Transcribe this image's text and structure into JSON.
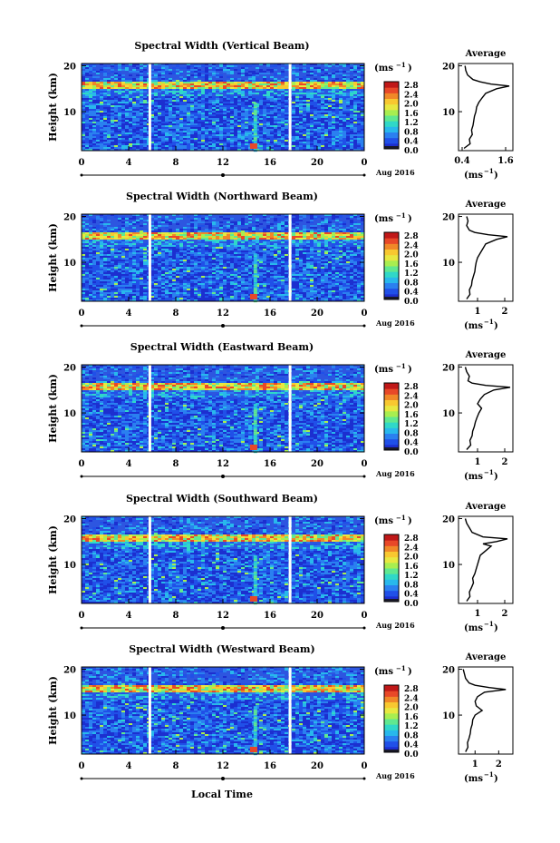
{
  "figure": {
    "date_label": "Aug 2016",
    "xlabel": "Local Time",
    "ylabel": "Height (km)",
    "colorbar_unit": "(ms",
    "colorbar_unit_exp": "−1",
    "avg_title": "Average",
    "avg_xlabel": "(ms",
    "avg_xlabel_exp": "−1",
    "colors": {
      "background_fill": "#2d56e0",
      "scale": [
        "#1a1a2a",
        "#1c2fd0",
        "#2050e8",
        "#2a80f0",
        "#28b8ec",
        "#30d8c8",
        "#60e890",
        "#a8ee50",
        "#e8e840",
        "#f8c830",
        "#f08828",
        "#e84828",
        "#c01818"
      ]
    }
  },
  "chart_data": [
    {
      "type": "heatmap",
      "title": "Spectral Width (Vertical Beam)",
      "xlabel": "Local Time",
      "ylabel": "Height (km)",
      "x_ticks": [
        "0",
        "4",
        "8",
        "12",
        "16",
        "20",
        "0"
      ],
      "y_ticks": [
        "20",
        "10"
      ],
      "xlim": [
        0,
        24
      ],
      "ylim": [
        1.5,
        20.5
      ],
      "colorbar": {
        "unit": "(ms−1)",
        "ticks": [
          "2.8",
          "2.4",
          "2.0",
          "1.6",
          "1.2",
          "0.8",
          "0.4",
          "0.0"
        ],
        "range": [
          0,
          2.8
        ]
      },
      "data_gaps_hours": [
        5.8,
        17.7
      ],
      "average_profile": {
        "title": "Average",
        "xlabel": "(ms−1)",
        "x_ticks": [
          "0.4",
          "1.6"
        ],
        "xlim": [
          0.3,
          1.8
        ],
        "y_ticks": [
          "20",
          "10"
        ],
        "height_km": [
          2,
          3,
          4,
          5,
          6,
          7,
          8,
          9,
          10,
          11,
          12,
          13,
          14,
          15,
          15.6,
          16,
          16.5,
          17,
          18,
          19,
          20
        ],
        "width_ms": [
          0.45,
          0.62,
          0.6,
          0.68,
          0.66,
          0.7,
          0.72,
          0.74,
          0.78,
          0.8,
          0.86,
          0.95,
          1.05,
          1.35,
          1.7,
          1.2,
          0.9,
          0.7,
          0.55,
          0.5,
          0.48
        ]
      }
    },
    {
      "type": "heatmap",
      "title": "Spectral Width (Northward Beam)",
      "xlabel": "Local Time",
      "ylabel": "Height (km)",
      "x_ticks": [
        "0",
        "4",
        "8",
        "12",
        "16",
        "20",
        "0"
      ],
      "y_ticks": [
        "20",
        "10"
      ],
      "xlim": [
        0,
        24
      ],
      "ylim": [
        1.5,
        20.5
      ],
      "colorbar": {
        "unit": "(ms−1)",
        "ticks": [
          "2.8",
          "2.4",
          "2.0",
          "1.6",
          "1.2",
          "0.8",
          "0.4",
          "0.0"
        ],
        "range": [
          0,
          2.8
        ]
      },
      "data_gaps_hours": [
        5.8,
        17.7
      ],
      "average_profile": {
        "title": "Average",
        "xlabel": "(ms−1)",
        "x_ticks": [
          "1",
          "2"
        ],
        "xlim": [
          0.3,
          2.3
        ],
        "y_ticks": [
          "20",
          "10"
        ],
        "height_km": [
          2,
          3,
          4,
          5,
          6,
          7,
          8,
          9,
          10,
          11,
          12,
          13,
          14,
          15,
          15.6,
          16,
          16.5,
          17,
          18,
          19,
          20
        ],
        "width_ms": [
          0.6,
          0.72,
          0.7,
          0.78,
          0.8,
          0.85,
          0.9,
          0.92,
          0.95,
          1.0,
          1.1,
          1.2,
          1.3,
          1.7,
          2.1,
          1.4,
          0.9,
          0.7,
          0.6,
          0.65,
          0.6
        ]
      }
    },
    {
      "type": "heatmap",
      "title": "Spectral Width (Eastward Beam)",
      "xlabel": "Local Time",
      "ylabel": "Height (km)",
      "x_ticks": [
        "0",
        "4",
        "8",
        "12",
        "16",
        "20",
        "0"
      ],
      "y_ticks": [
        "20",
        "10"
      ],
      "xlim": [
        0,
        24
      ],
      "ylim": [
        1.5,
        20.5
      ],
      "colorbar": {
        "unit": "(ms−1)",
        "ticks": [
          "2.8",
          "2.4",
          "2.0",
          "1.6",
          "1.2",
          "0.8",
          "0.4",
          "0.0"
        ],
        "range": [
          0,
          2.8
        ]
      },
      "data_gaps_hours": [
        5.8,
        17.7
      ],
      "average_profile": {
        "title": "Average",
        "xlabel": "(ms−1)",
        "x_ticks": [
          "1",
          "2"
        ],
        "xlim": [
          0.3,
          2.3
        ],
        "y_ticks": [
          "20",
          "10"
        ],
        "height_km": [
          2,
          3,
          4,
          5,
          6,
          7,
          8,
          9,
          10,
          11,
          12,
          13,
          14,
          15,
          15.6,
          16,
          16.5,
          17,
          18,
          19,
          20
        ],
        "width_ms": [
          0.6,
          0.75,
          0.72,
          0.8,
          0.82,
          0.88,
          0.92,
          0.98,
          1.05,
          1.15,
          1.0,
          1.1,
          1.25,
          1.6,
          2.2,
          1.3,
          0.8,
          0.65,
          0.7,
          0.6,
          0.55
        ]
      }
    },
    {
      "type": "heatmap",
      "title": "Spectral Width (Southward Beam)",
      "xlabel": "Local Time",
      "ylabel": "Height (km)",
      "x_ticks": [
        "0",
        "4",
        "8",
        "12",
        "16",
        "20",
        "0"
      ],
      "y_ticks": [
        "20",
        "10"
      ],
      "xlim": [
        0,
        24
      ],
      "ylim": [
        1.5,
        20.5
      ],
      "colorbar": {
        "unit": "(ms−1)",
        "ticks": [
          "2.8",
          "2.4",
          "2.0",
          "1.6",
          "1.2",
          "0.8",
          "0.4",
          "0.0"
        ],
        "range": [
          0,
          2.8
        ]
      },
      "data_gaps_hours": [
        5.8,
        17.7
      ],
      "average_profile": {
        "title": "Average",
        "xlabel": "(ms−1)",
        "x_ticks": [
          "1",
          "2"
        ],
        "xlim": [
          0.3,
          2.3
        ],
        "y_ticks": [
          "20",
          "10"
        ],
        "height_km": [
          2,
          3,
          4,
          5,
          6,
          7,
          8,
          9,
          10,
          11,
          12,
          13,
          14,
          14.5,
          15,
          15.6,
          16,
          17,
          18,
          19,
          20
        ],
        "width_ms": [
          0.6,
          0.72,
          0.7,
          0.78,
          0.85,
          0.82,
          0.9,
          0.95,
          1.0,
          1.05,
          1.1,
          1.3,
          1.5,
          1.2,
          1.7,
          2.1,
          1.2,
          0.8,
          0.7,
          0.6,
          0.55
        ]
      }
    },
    {
      "type": "heatmap",
      "title": "Spectral Width (Westward Beam)",
      "xlabel": "Local Time",
      "ylabel": "Height (km)",
      "x_ticks": [
        "0",
        "4",
        "8",
        "12",
        "16",
        "20",
        "0"
      ],
      "y_ticks": [
        "20",
        "10"
      ],
      "xlim": [
        0,
        24
      ],
      "ylim": [
        1.5,
        20.5
      ],
      "colorbar": {
        "unit": "(ms−1)",
        "ticks": [
          "2.8",
          "2.4",
          "2.0",
          "1.6",
          "1.2",
          "0.8",
          "0.4",
          "0.0"
        ],
        "range": [
          0,
          2.8
        ]
      },
      "data_gaps_hours": [
        5.8,
        17.7
      ],
      "average_profile": {
        "title": "Average",
        "xlabel": "(ms−1)",
        "x_ticks": [
          "1",
          "2"
        ],
        "xlim": [
          0.3,
          2.6
        ],
        "y_ticks": [
          "20",
          "10"
        ],
        "height_km": [
          2,
          3,
          4,
          5,
          6,
          7,
          8,
          9,
          10,
          11,
          12,
          13,
          14,
          15,
          15.6,
          16,
          16.5,
          17,
          18,
          19,
          20
        ],
        "width_ms": [
          0.6,
          0.7,
          0.68,
          0.75,
          0.8,
          0.82,
          0.88,
          0.9,
          1.0,
          1.3,
          1.05,
          1.0,
          1.1,
          1.4,
          2.3,
          1.6,
          1.0,
          0.75,
          0.6,
          0.55,
          0.5
        ]
      }
    }
  ]
}
